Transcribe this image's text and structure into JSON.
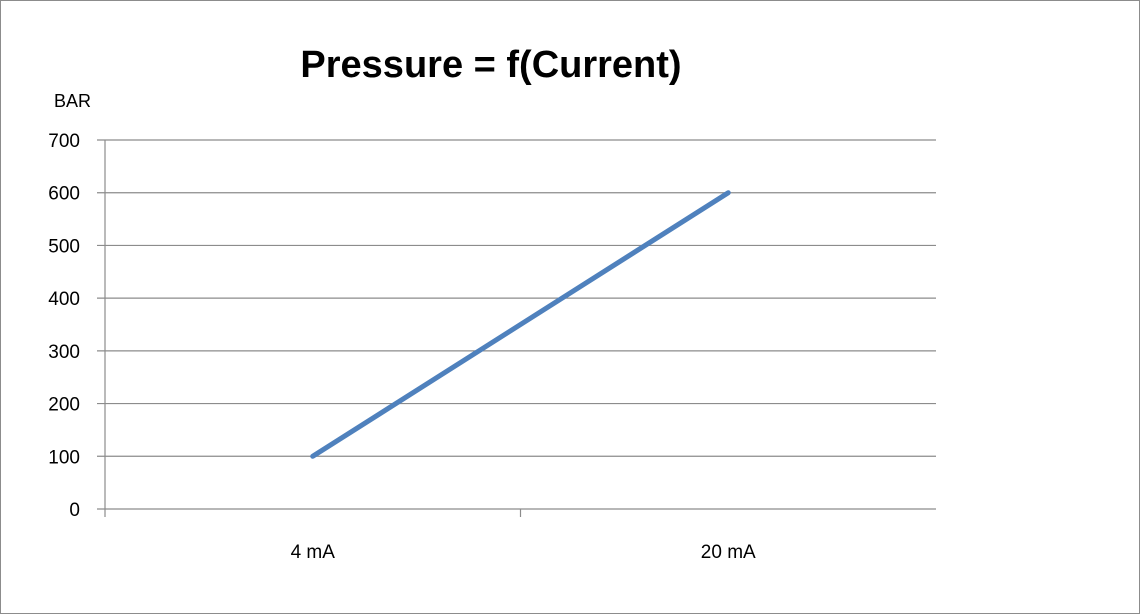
{
  "chart_data": {
    "type": "line",
    "title": "Pressure = f(Current)",
    "xlabel": "",
    "ylabel": "BAR",
    "categories": [
      "4 mA",
      "20 mA"
    ],
    "series": [
      {
        "values": [
          100,
          600
        ],
        "color": "#4f81bd"
      }
    ],
    "ylim": [
      0,
      700
    ],
    "yticks": [
      0,
      100,
      200,
      300,
      400,
      500,
      600,
      700
    ],
    "grid": true,
    "legend": "none"
  }
}
